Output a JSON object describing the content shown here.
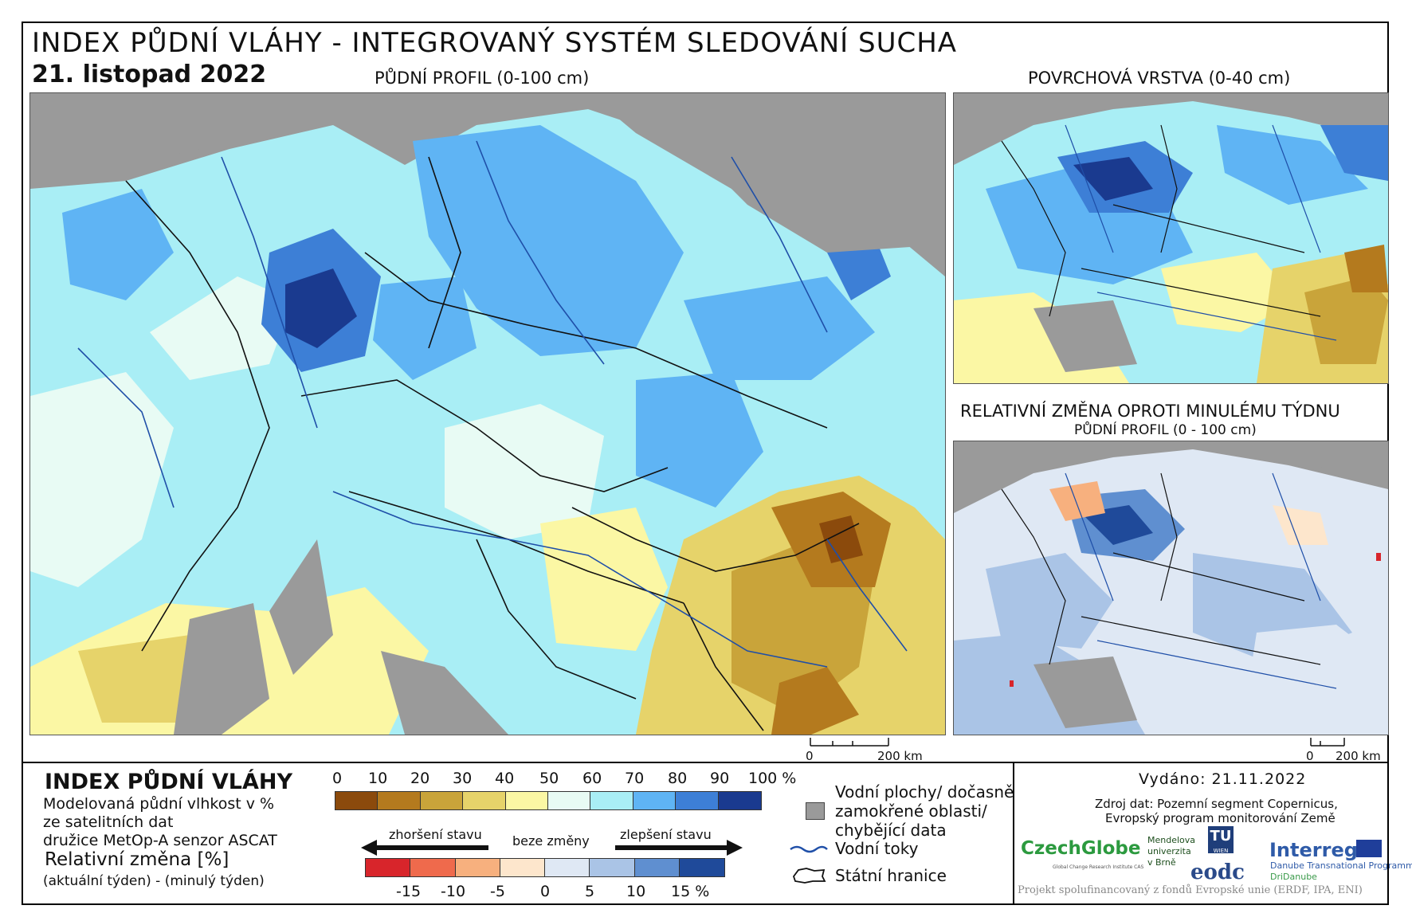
{
  "header": {
    "title": "INDEX PŮDNÍ VLÁHY - INTEGROVANÝ SYSTÉM SLEDOVÁNÍ SUCHA",
    "date": "21. listopad 2022"
  },
  "maps": {
    "main_title": "PŮDNÍ PROFIL (0-100 cm)",
    "surface_title": "POVRCHOVÁ VRSTVA (0-40 cm)",
    "change_title": "RELATIVNÍ ZMĚNA OPROTI MINULÉMU TÝDNU",
    "change_subtitle": "PŮDNÍ PROFIL (0 - 100 cm)",
    "scale_main": {
      "zero": "0",
      "end": "200 km"
    },
    "scale_small": {
      "zero": "0",
      "end": "200 km"
    }
  },
  "legend": {
    "title": "INDEX PŮDNÍ VLÁHY",
    "desc1": "Modelovaná půdní vlhkost v %",
    "desc2": "ze satelitních dat",
    "desc3": "družice MetOp-A senzor ASCAT",
    "rel_title": "Relativní změna [%]",
    "rel_sub": "(aktuální týden) - (minulý týden)",
    "index_ticks": [
      "0",
      "10",
      "20",
      "30",
      "40",
      "50",
      "60",
      "70",
      "80",
      "90",
      "100 %"
    ],
    "index_colors": [
      "#8b4a0c",
      "#b47a1e",
      "#c9a43a",
      "#e6d36a",
      "#fbf7a4",
      "#e8fbf4",
      "#a9eef5",
      "#5fb4f4",
      "#3d7fd6",
      "#1a3a8f"
    ],
    "change_ticks": [
      "-15",
      "-10",
      "-5",
      "0",
      "5",
      "10",
      "15 %"
    ],
    "change_colors": [
      "#d8252b",
      "#ef6a4c",
      "#f7b07e",
      "#fde6cc",
      "#dfe8f4",
      "#aac4e6",
      "#5f8fd0",
      "#1f4a9a"
    ],
    "worse_label": "zhoršení stavu",
    "nochange_label": "beze změny",
    "better_label": "zlepšení stavu",
    "water_label_1": "Vodní plochy/ dočasně",
    "water_label_2": "zamokřené oblasti/",
    "water_label_3": "chybějící data",
    "rivers_label": "Vodní toky",
    "borders_label": "Státní hranice",
    "missing_color": "#9a9a9a",
    "river_color": "#1f4fa8"
  },
  "info": {
    "issued": "Vydáno: 21.11.2022",
    "source1": "Zdroj dat: Pozemní segment Copernicus,",
    "source2": "Evropský program monitorování Země",
    "footer": "Projekt spolufinancovaný z fondů Evropské unie (ERDF, IPA, ENI)"
  },
  "logos": {
    "czechglobe": "CzechGlobe",
    "czechglobe_sub": "Global Change Research Institute CAS",
    "mendel_1": "Mendelova",
    "mendel_2": "univerzita",
    "mendel_3": "v Brně",
    "tu": "TU",
    "tu_sub": "WIEN",
    "eodc": "eodc",
    "interreg": "Interreg",
    "interreg_sub1": "Danube Transnational Programme",
    "interreg_sub2": "DriDanube"
  }
}
